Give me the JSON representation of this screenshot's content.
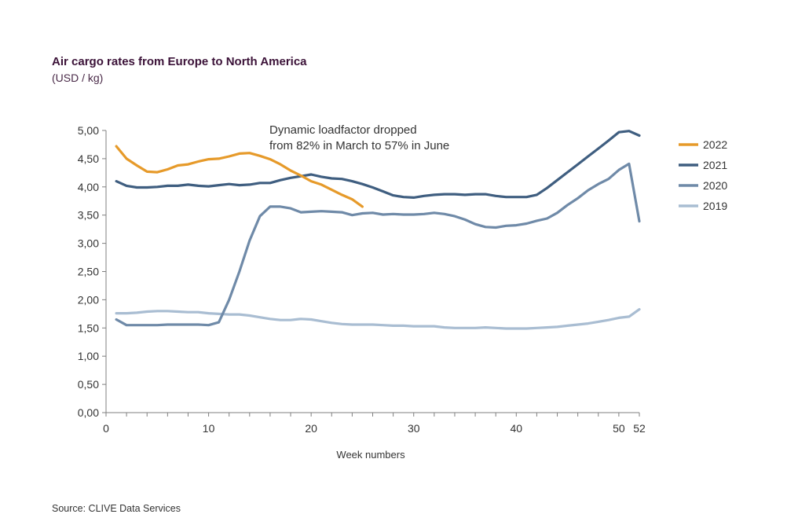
{
  "chart_data": {
    "type": "line",
    "title": "Air cargo rates from Europe to North America",
    "subtitle": "(USD / kg)",
    "xlabel": "Week numbers",
    "ylabel": "",
    "xlim": [
      0,
      52
    ],
    "ylim": [
      0,
      5
    ],
    "x_ticks": [
      0,
      10,
      20,
      30,
      40,
      50,
      52
    ],
    "y_ticks": [
      0,
      0.5,
      1,
      1.5,
      2,
      2.5,
      3,
      3.5,
      4,
      4.5,
      5
    ],
    "y_tick_labels": [
      "0,00",
      "0,50",
      "1,00",
      "1,50",
      "2,00",
      "2,50",
      "3,00",
      "3,50",
      "4,00",
      "4,50",
      "5,00"
    ],
    "grid": false,
    "legend_position": "right",
    "annotation": [
      "Dynamic loadfactor dropped",
      "from 82% in March to 57% in June"
    ],
    "source": "Source: CLIVE Data Services",
    "series": [
      {
        "name": "2022",
        "color": "#e69a2a",
        "x": [
          1,
          2,
          3,
          4,
          5,
          6,
          7,
          8,
          9,
          10,
          11,
          12,
          13,
          14,
          15,
          16,
          17,
          18,
          19,
          20,
          21,
          22,
          23,
          24,
          25
        ],
        "values": [
          4.72,
          4.5,
          4.38,
          4.27,
          4.26,
          4.31,
          4.38,
          4.4,
          4.45,
          4.49,
          4.5,
          4.54,
          4.59,
          4.6,
          4.55,
          4.49,
          4.4,
          4.29,
          4.2,
          4.1,
          4.04,
          3.95,
          3.86,
          3.78,
          3.65
        ]
      },
      {
        "name": "2021",
        "color": "#3f5e80",
        "x": [
          1,
          2,
          3,
          4,
          5,
          6,
          7,
          8,
          9,
          10,
          11,
          12,
          13,
          14,
          15,
          16,
          17,
          18,
          19,
          20,
          21,
          22,
          23,
          24,
          25,
          26,
          27,
          28,
          29,
          30,
          31,
          32,
          33,
          34,
          35,
          36,
          37,
          38,
          39,
          40,
          41,
          42,
          43,
          44,
          45,
          46,
          47,
          48,
          49,
          50,
          51,
          52
        ],
        "values": [
          4.1,
          4.02,
          3.99,
          3.99,
          4.0,
          4.02,
          4.02,
          4.04,
          4.02,
          4.01,
          4.03,
          4.05,
          4.03,
          4.04,
          4.07,
          4.07,
          4.12,
          4.16,
          4.19,
          4.22,
          4.18,
          4.15,
          4.14,
          4.1,
          4.05,
          3.99,
          3.92,
          3.85,
          3.82,
          3.81,
          3.84,
          3.86,
          3.87,
          3.87,
          3.86,
          3.87,
          3.87,
          3.84,
          3.82,
          3.82,
          3.82,
          3.86,
          3.98,
          4.12,
          4.26,
          4.4,
          4.54,
          4.68,
          4.82,
          4.97,
          4.99,
          4.91
        ]
      },
      {
        "name": "2020",
        "color": "#6f8aa8",
        "x": [
          1,
          2,
          3,
          4,
          5,
          6,
          7,
          8,
          9,
          10,
          11,
          12,
          13,
          14,
          15,
          16,
          17,
          18,
          19,
          20,
          21,
          22,
          23,
          24,
          25,
          26,
          27,
          28,
          29,
          30,
          31,
          32,
          33,
          34,
          35,
          36,
          37,
          38,
          39,
          40,
          41,
          42,
          43,
          44,
          45,
          46,
          47,
          48,
          49,
          50,
          51,
          52
        ],
        "values": [
          1.65,
          1.55,
          1.55,
          1.55,
          1.55,
          1.56,
          1.56,
          1.56,
          1.56,
          1.55,
          1.6,
          2.0,
          2.5,
          3.05,
          3.48,
          3.65,
          3.65,
          3.62,
          3.55,
          3.56,
          3.57,
          3.56,
          3.55,
          3.5,
          3.53,
          3.54,
          3.51,
          3.52,
          3.51,
          3.51,
          3.52,
          3.54,
          3.52,
          3.48,
          3.42,
          3.34,
          3.29,
          3.28,
          3.31,
          3.32,
          3.35,
          3.4,
          3.44,
          3.54,
          3.68,
          3.8,
          3.94,
          4.05,
          4.14,
          4.3,
          4.41,
          3.39
        ]
      },
      {
        "name": "2019",
        "color": "#a9bdd2",
        "x": [
          1,
          2,
          3,
          4,
          5,
          6,
          7,
          8,
          9,
          10,
          11,
          12,
          13,
          14,
          15,
          16,
          17,
          18,
          19,
          20,
          21,
          22,
          23,
          24,
          25,
          26,
          27,
          28,
          29,
          30,
          31,
          32,
          33,
          34,
          35,
          36,
          37,
          38,
          39,
          40,
          41,
          42,
          43,
          44,
          45,
          46,
          47,
          48,
          49,
          50,
          51,
          52
        ],
        "values": [
          1.76,
          1.76,
          1.77,
          1.79,
          1.8,
          1.8,
          1.79,
          1.78,
          1.78,
          1.76,
          1.75,
          1.74,
          1.74,
          1.72,
          1.69,
          1.66,
          1.64,
          1.64,
          1.66,
          1.65,
          1.62,
          1.59,
          1.57,
          1.56,
          1.56,
          1.56,
          1.55,
          1.54,
          1.54,
          1.53,
          1.53,
          1.53,
          1.51,
          1.5,
          1.5,
          1.5,
          1.51,
          1.5,
          1.49,
          1.49,
          1.49,
          1.5,
          1.51,
          1.52,
          1.54,
          1.56,
          1.58,
          1.61,
          1.64,
          1.68,
          1.7,
          1.83
        ]
      }
    ]
  }
}
